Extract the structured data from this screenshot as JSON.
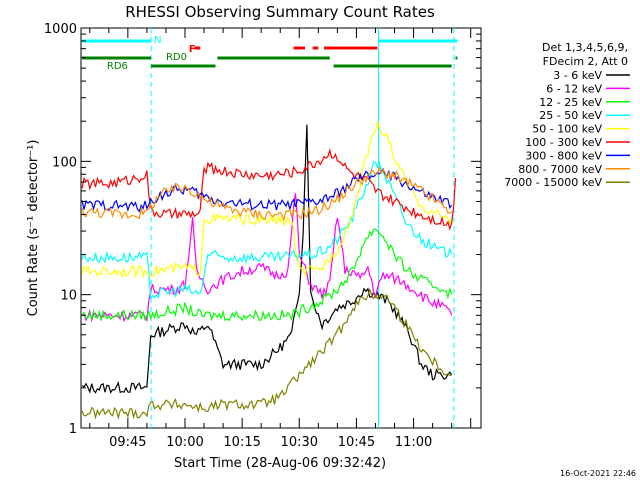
{
  "chart_data": {
    "type": "line",
    "title": "RHESSI Observing Summary Count Rates",
    "xlabel": "Start Time (28-Aug-06 09:32:42)",
    "ylabel": "Count Rate (s⁻¹ detector⁻¹)",
    "y_scale": "log",
    "ylim": [
      1,
      1000
    ],
    "y_ticks": [
      "1",
      "10",
      "100",
      "1000"
    ],
    "x_minutes_range": [
      32.7,
      137.7
    ],
    "x_ticks": [
      {
        "minute": 45,
        "label": "09:45"
      },
      {
        "minute": 60,
        "label": "10:00"
      },
      {
        "minute": 75,
        "label": "10:15"
      },
      {
        "minute": 90,
        "label": "10:30"
      },
      {
        "minute": 105,
        "label": "10:45"
      },
      {
        "minute": 120,
        "label": "11:00"
      }
    ],
    "legend_header": [
      "Det 1,3,4,5,6,9,",
      "FDecim 2, Att 0"
    ],
    "timestamp": "16-Oct-2021 22:46",
    "markers": {
      "cyan_lines_minutes": [
        110.8
      ],
      "dashed_lines_minutes": [
        51.1,
        130.6
      ],
      "night_label": "N",
      "flare_label": "F",
      "rd0_label": "RD0",
      "rd6_label": "RD6",
      "night_intervals": [
        [
          33,
          51.1
        ],
        [
          110.8,
          131.5
        ]
      ],
      "flare_intervals": [
        [
          62.5,
          64
        ],
        [
          88.5,
          91.5
        ],
        [
          93.5,
          95
        ],
        [
          96.5,
          110.5
        ]
      ],
      "rd0_intervals": [
        [
          33,
          51.1
        ],
        [
          68.5,
          98
        ],
        [
          131,
          131.5
        ]
      ],
      "rd6_intervals": [
        [
          51.1,
          68
        ],
        [
          99,
          130
        ]
      ]
    },
    "series": [
      {
        "name": "3 - 6 keV",
        "color": "#000000",
        "points": [
          [
            33,
            2
          ],
          [
            50,
            2
          ],
          [
            51,
            5
          ],
          [
            60,
            6
          ],
          [
            63,
            5
          ],
          [
            66,
            6
          ],
          [
            70,
            3
          ],
          [
            75,
            3
          ],
          [
            80,
            3
          ],
          [
            85,
            4
          ],
          [
            88,
            5
          ],
          [
            90,
            11
          ],
          [
            91,
            30
          ],
          [
            92,
            200
          ],
          [
            93,
            10
          ],
          [
            96,
            6
          ],
          [
            100,
            8
          ],
          [
            104,
            9
          ],
          [
            107,
            11
          ],
          [
            110,
            10
          ],
          [
            113,
            9
          ],
          [
            116,
            7
          ],
          [
            119,
            5
          ],
          [
            122,
            3
          ],
          [
            125,
            2.5
          ],
          [
            128,
            2.5
          ],
          [
            130,
            2.5
          ]
        ]
      },
      {
        "name": "6 - 12 keV",
        "color": "#ff00ff",
        "points": [
          [
            33,
            7
          ],
          [
            50,
            7
          ],
          [
            51,
            11
          ],
          [
            58,
            11
          ],
          [
            60,
            12
          ],
          [
            62,
            35
          ],
          [
            63,
            15
          ],
          [
            66,
            11
          ],
          [
            70,
            13
          ],
          [
            75,
            15
          ],
          [
            80,
            16
          ],
          [
            84,
            14
          ],
          [
            87,
            15
          ],
          [
            89,
            60
          ],
          [
            90,
            20
          ],
          [
            93,
            12
          ],
          [
            96,
            10
          ],
          [
            98,
            12
          ],
          [
            100,
            40
          ],
          [
            102,
            15
          ],
          [
            104,
            15
          ],
          [
            106,
            13
          ],
          [
            108,
            16
          ],
          [
            110,
            10
          ],
          [
            112,
            14
          ],
          [
            116,
            13
          ],
          [
            120,
            11
          ],
          [
            124,
            9
          ],
          [
            128,
            8
          ],
          [
            130,
            7
          ]
        ]
      },
      {
        "name": "12 - 25 keV",
        "color": "#00ff00",
        "points": [
          [
            33,
            7
          ],
          [
            50,
            7
          ],
          [
            51,
            7
          ],
          [
            60,
            8
          ],
          [
            64,
            7
          ],
          [
            68,
            7
          ],
          [
            72,
            7
          ],
          [
            76,
            7
          ],
          [
            80,
            7
          ],
          [
            84,
            7
          ],
          [
            88,
            7
          ],
          [
            92,
            8
          ],
          [
            96,
            9
          ],
          [
            100,
            11
          ],
          [
            104,
            15
          ],
          [
            107,
            25
          ],
          [
            110,
            32
          ],
          [
            113,
            25
          ],
          [
            116,
            18
          ],
          [
            120,
            14
          ],
          [
            124,
            12
          ],
          [
            128,
            11
          ],
          [
            130,
            10
          ]
        ]
      },
      {
        "name": "25 - 50 keV",
        "color": "#00ffff",
        "points": [
          [
            33,
            19
          ],
          [
            50,
            19
          ],
          [
            51,
            10
          ],
          [
            60,
            11
          ],
          [
            64,
            10
          ],
          [
            66,
            20
          ],
          [
            70,
            19
          ],
          [
            75,
            19
          ],
          [
            80,
            19
          ],
          [
            85,
            19
          ],
          [
            90,
            20
          ],
          [
            94,
            20
          ],
          [
            97,
            22
          ],
          [
            100,
            26
          ],
          [
            104,
            38
          ],
          [
            108,
            70
          ],
          [
            110,
            100
          ],
          [
            112,
            85
          ],
          [
            115,
            55
          ],
          [
            118,
            35
          ],
          [
            122,
            26
          ],
          [
            126,
            22
          ],
          [
            130,
            20
          ]
        ]
      },
      {
        "name": "50 - 100 keV",
        "color": "#ffff00",
        "points": [
          [
            33,
            15
          ],
          [
            50,
            15
          ],
          [
            51,
            15
          ],
          [
            60,
            16
          ],
          [
            64,
            15
          ],
          [
            65,
            37
          ],
          [
            70,
            37
          ],
          [
            75,
            37
          ],
          [
            80,
            36
          ],
          [
            85,
            36
          ],
          [
            88,
            36
          ],
          [
            90,
            15
          ],
          [
            95,
            15
          ],
          [
            100,
            22
          ],
          [
            104,
            40
          ],
          [
            107,
            90
          ],
          [
            109,
            160
          ],
          [
            111,
            185
          ],
          [
            113,
            150
          ],
          [
            116,
            90
          ],
          [
            120,
            55
          ],
          [
            124,
            42
          ],
          [
            128,
            38
          ],
          [
            130,
            37
          ]
        ]
      },
      {
        "name": "100 - 300 keV",
        "color": "#ff0000",
        "points": [
          [
            33,
            68
          ],
          [
            40,
            68
          ],
          [
            45,
            72
          ],
          [
            50,
            80
          ],
          [
            51,
            42
          ],
          [
            55,
            40
          ],
          [
            60,
            40
          ],
          [
            64,
            40
          ],
          [
            65,
            90
          ],
          [
            70,
            85
          ],
          [
            75,
            80
          ],
          [
            80,
            78
          ],
          [
            85,
            80
          ],
          [
            90,
            85
          ],
          [
            95,
            100
          ],
          [
            98,
            115
          ],
          [
            100,
            110
          ],
          [
            102,
            90
          ],
          [
            104,
            80
          ],
          [
            106,
            75
          ],
          [
            108,
            70
          ],
          [
            110,
            60
          ],
          [
            112,
            55
          ],
          [
            116,
            48
          ],
          [
            120,
            42
          ],
          [
            124,
            38
          ],
          [
            128,
            35
          ],
          [
            130,
            33
          ],
          [
            131,
            75
          ]
        ]
      },
      {
        "name": "300 - 800 keV",
        "color": "#0000ff",
        "points": [
          [
            33,
            47
          ],
          [
            40,
            47
          ],
          [
            45,
            46
          ],
          [
            50,
            46
          ],
          [
            53,
            55
          ],
          [
            57,
            60
          ],
          [
            60,
            62
          ],
          [
            63,
            58
          ],
          [
            66,
            53
          ],
          [
            70,
            50
          ],
          [
            75,
            48
          ],
          [
            80,
            47
          ],
          [
            85,
            47
          ],
          [
            90,
            48
          ],
          [
            95,
            50
          ],
          [
            100,
            57
          ],
          [
            104,
            70
          ],
          [
            108,
            78
          ],
          [
            111,
            82
          ],
          [
            114,
            78
          ],
          [
            118,
            68
          ],
          [
            122,
            58
          ],
          [
            126,
            52
          ],
          [
            130,
            47
          ]
        ]
      },
      {
        "name": "800 - 7000 keV",
        "color": "#ff8c00",
        "points": [
          [
            33,
            42
          ],
          [
            40,
            41
          ],
          [
            45,
            40
          ],
          [
            50,
            41
          ],
          [
            53,
            55
          ],
          [
            57,
            62
          ],
          [
            60,
            64
          ],
          [
            63,
            58
          ],
          [
            66,
            50
          ],
          [
            70,
            45
          ],
          [
            75,
            42
          ],
          [
            80,
            40
          ],
          [
            85,
            40
          ],
          [
            90,
            40
          ],
          [
            95,
            43
          ],
          [
            100,
            52
          ],
          [
            104,
            65
          ],
          [
            108,
            78
          ],
          [
            111,
            83
          ],
          [
            114,
            80
          ],
          [
            118,
            70
          ],
          [
            122,
            60
          ],
          [
            126,
            50
          ],
          [
            130,
            42
          ]
        ]
      },
      {
        "name": "7000 - 15000 keV",
        "color": "#808000",
        "points": [
          [
            33,
            1.3
          ],
          [
            50,
            1.3
          ],
          [
            51,
            1.5
          ],
          [
            60,
            1.5
          ],
          [
            65,
            1.4
          ],
          [
            70,
            1.5
          ],
          [
            75,
            1.5
          ],
          [
            80,
            1.5
          ],
          [
            85,
            1.7
          ],
          [
            90,
            2.5
          ],
          [
            95,
            3.5
          ],
          [
            100,
            5
          ],
          [
            104,
            8
          ],
          [
            108,
            10
          ],
          [
            111,
            10
          ],
          [
            114,
            9
          ],
          [
            118,
            6
          ],
          [
            122,
            4
          ],
          [
            126,
            3
          ],
          [
            130,
            2.5
          ]
        ]
      }
    ]
  }
}
